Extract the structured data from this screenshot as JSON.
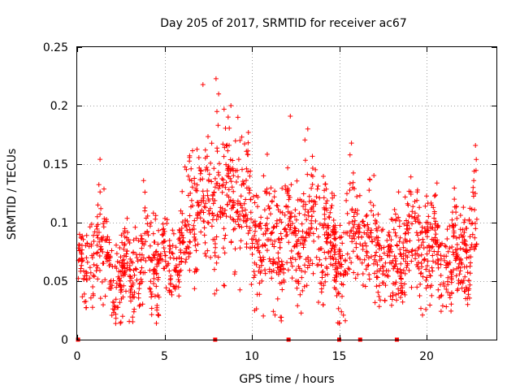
{
  "chart_data": {
    "type": "scatter",
    "title": "Day 205 of 2017, SRMTID for receiver ac67",
    "xlabel": "GPS time / hours",
    "ylabel": "SRMTID / TECUs",
    "xlim": [
      0,
      24
    ],
    "ylim": [
      0,
      0.25
    ],
    "xticks": [
      0,
      5,
      10,
      15,
      20
    ],
    "xtick_labels": [
      "0",
      "5",
      "10",
      "15",
      "20"
    ],
    "yticks": [
      0,
      0.05,
      0.1,
      0.15,
      0.2,
      0.25
    ],
    "ytick_labels": [
      "0",
      "0.05",
      "0.1",
      "0.15",
      "0.2",
      "0.25"
    ],
    "grid": true,
    "marker": "+",
    "color": "#ff0000",
    "zero_points_x": [
      0.05,
      7.9,
      12.1,
      15.0,
      16.2,
      18.3
    ],
    "envelope": {
      "x": [
        0.0,
        0.5,
        1.0,
        1.5,
        2.0,
        2.5,
        3.0,
        3.5,
        4.0,
        4.5,
        5.0,
        5.5,
        6.0,
        6.5,
        7.0,
        7.5,
        8.0,
        8.5,
        9.0,
        9.5,
        10.0,
        10.5,
        11.0,
        11.5,
        12.0,
        12.5,
        13.0,
        13.5,
        14.0,
        14.5,
        15.0,
        15.5,
        16.0,
        16.5,
        17.0,
        17.5,
        18.0,
        18.5,
        19.0,
        19.5,
        20.0,
        20.5,
        21.0,
        21.5,
        22.0,
        22.5,
        22.9
      ],
      "y_center": [
        0.06,
        0.05,
        0.09,
        0.075,
        0.06,
        0.045,
        0.06,
        0.065,
        0.07,
        0.07,
        0.065,
        0.07,
        0.08,
        0.1,
        0.11,
        0.12,
        0.12,
        0.115,
        0.12,
        0.115,
        0.095,
        0.085,
        0.09,
        0.085,
        0.09,
        0.085,
        0.09,
        0.1,
        0.085,
        0.075,
        0.06,
        0.09,
        0.095,
        0.085,
        0.08,
        0.07,
        0.06,
        0.075,
        0.085,
        0.08,
        0.085,
        0.075,
        0.065,
        0.07,
        0.075,
        0.08,
        0.085
      ],
      "y_spread": [
        0.025,
        0.02,
        0.03,
        0.03,
        0.025,
        0.025,
        0.025,
        0.025,
        0.03,
        0.03,
        0.025,
        0.025,
        0.03,
        0.035,
        0.035,
        0.04,
        0.04,
        0.04,
        0.04,
        0.035,
        0.035,
        0.03,
        0.035,
        0.035,
        0.03,
        0.03,
        0.035,
        0.035,
        0.035,
        0.03,
        0.03,
        0.035,
        0.03,
        0.03,
        0.03,
        0.025,
        0.025,
        0.03,
        0.03,
        0.03,
        0.03,
        0.03,
        0.025,
        0.03,
        0.03,
        0.035,
        0.04
      ]
    },
    "point_count": 1900,
    "highlights": [
      {
        "x": 7.2,
        "y": 0.218
      },
      {
        "x": 7.95,
        "y": 0.223
      },
      {
        "x": 8.1,
        "y": 0.21
      },
      {
        "x": 8.8,
        "y": 0.2
      },
      {
        "x": 12.2,
        "y": 0.191
      },
      {
        "x": 13.2,
        "y": 0.18
      },
      {
        "x": 15.7,
        "y": 0.168
      },
      {
        "x": 22.8,
        "y": 0.166
      },
      {
        "x": 8.0,
        "y": 0.195
      },
      {
        "x": 9.2,
        "y": 0.19
      },
      {
        "x": 2.5,
        "y": 0.015
      },
      {
        "x": 2.6,
        "y": 0.02
      }
    ]
  }
}
